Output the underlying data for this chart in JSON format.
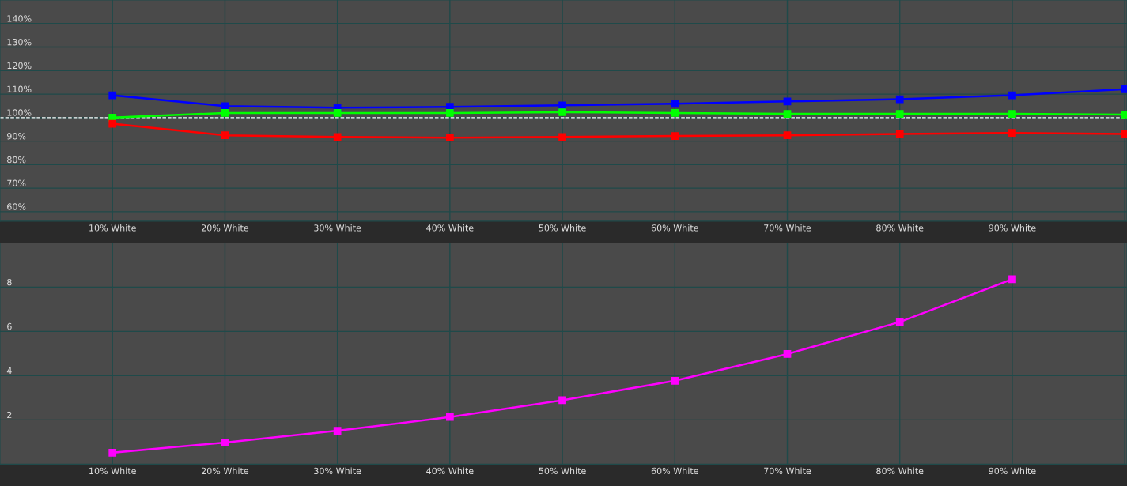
{
  "chart_data": [
    {
      "type": "line",
      "categories": [
        "10% White",
        "20% White",
        "30% White",
        "40% White",
        "50% White",
        "60% White",
        "70% White",
        "80% White",
        "90% White",
        null
      ],
      "series": [
        {
          "color": "#0000ff",
          "values": [
            109.5,
            104.9,
            104.2,
            104.6,
            105.2,
            105.9,
            106.9,
            107.8,
            109.5,
            112.1
          ]
        },
        {
          "color": "#00ff00",
          "values": [
            100,
            102,
            102,
            102,
            102.3,
            102,
            101.6,
            101.6,
            101.6,
            101.3
          ]
        },
        {
          "color": "#ff0000",
          "values": [
            97.4,
            92.5,
            91.8,
            91.5,
            91.8,
            92.2,
            92.5,
            93.1,
            93.5,
            93.1
          ]
        }
      ],
      "ylim": [
        56,
        150
      ],
      "yticks": [
        {
          "value": 60,
          "label": "60%"
        },
        {
          "value": 70,
          "label": "70%"
        },
        {
          "value": 80,
          "label": "80%"
        },
        {
          "value": 90,
          "label": "90%"
        },
        {
          "value": 100,
          "label": "100%"
        },
        {
          "value": 110,
          "label": "110%"
        },
        {
          "value": 120,
          "label": "120%"
        },
        {
          "value": 130,
          "label": "130%"
        },
        {
          "value": 140,
          "label": "140%"
        }
      ],
      "ref_lines": [
        {
          "axis": "y",
          "value": 100,
          "color": "#ffffff",
          "line_style": "dashed"
        }
      ],
      "grid": true,
      "marker": "square",
      "line_style": "solid"
    },
    {
      "type": "line",
      "categories": [
        "10% White",
        "20% White",
        "30% White",
        "40% White",
        "50% White",
        "60% White",
        "70% White",
        "80% White",
        "90% White",
        null
      ],
      "series": [
        {
          "color": "#ff00ff",
          "values": [
            0.52,
            0.98,
            1.51,
            2.13,
            2.89,
            3.77,
            4.98,
            6.43,
            8.36,
            null
          ]
        }
      ],
      "ylim": [
        0,
        10
      ],
      "yticks": [
        2,
        4,
        6,
        8
      ],
      "grid": true,
      "marker": "square",
      "line_style": "solid"
    }
  ]
}
